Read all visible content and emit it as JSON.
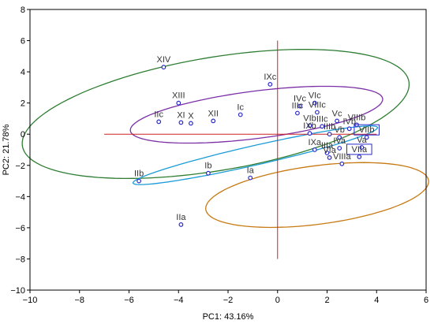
{
  "chart_data": {
    "type": "scatter",
    "xlabel": "PC1: 43.16%",
    "ylabel": "PC2: 21.78%",
    "xlim": [
      -10,
      6
    ],
    "ylim": [
      -10,
      8
    ],
    "x_ticks": [
      -10,
      -8,
      -6,
      -4,
      -2,
      0,
      2,
      4,
      6
    ],
    "y_ticks": [
      -10,
      -8,
      -6,
      -4,
      -2,
      0,
      2,
      4,
      6,
      8
    ],
    "x_tick_labels": [
      "−10",
      "−8",
      "−6",
      "−4",
      "−2",
      "0",
      "2",
      "4",
      "6"
    ],
    "y_tick_labels": [
      "−10",
      "−8",
      "−6",
      "−4",
      "−2",
      "0",
      "2",
      "4",
      "6",
      "8"
    ],
    "grid": false,
    "marker_color": "#2a2acc",
    "points": [
      {
        "label": "XIV",
        "x": -4.6,
        "y": 4.3
      },
      {
        "label": "XIII",
        "x": -4.0,
        "y": 2.0
      },
      {
        "label": "IIc",
        "x": -4.8,
        "y": 0.8
      },
      {
        "label": "XI",
        "x": -3.9,
        "y": 0.75
      },
      {
        "label": "X",
        "x": -3.5,
        "y": 0.7
      },
      {
        "label": "XII",
        "x": -2.6,
        "y": 0.85
      },
      {
        "label": "Ic",
        "x": -1.5,
        "y": 1.25
      },
      {
        "label": "IXc",
        "x": -0.3,
        "y": 3.2
      },
      {
        "label": "VIc",
        "x": 1.5,
        "y": 2.0
      },
      {
        "label": "IVc",
        "x": 0.9,
        "y": 1.8
      },
      {
        "label": "IIIc",
        "x": 0.8,
        "y": 1.35
      },
      {
        "label": "VIIIc",
        "x": 1.6,
        "y": 1.4
      },
      {
        "label": "Vc",
        "x": 2.4,
        "y": 0.85
      },
      {
        "label": "VIb",
        "x": 1.3,
        "y": 0.55
      },
      {
        "label": "IIIc",
        "x": 1.8,
        "y": 0.5
      },
      {
        "label": "IXb",
        "x": 1.3,
        "y": 0.05
      },
      {
        "label": "VIIIb",
        "x": 3.2,
        "y": 0.6
      },
      {
        "label": "IVb",
        "x": 2.9,
        "y": 0.35
      },
      {
        "label": "IIIb",
        "x": 2.1,
        "y": 0.0
      },
      {
        "label": "Vb",
        "x": 2.5,
        "y": -0.2
      },
      {
        "label": "VIIb",
        "x": 3.6,
        "y": -0.2
      },
      {
        "label": "IVa",
        "x": 2.5,
        "y": -0.9
      },
      {
        "label": "IXa",
        "x": 1.5,
        "y": -1.0
      },
      {
        "label": "IIIa",
        "x": 2.0,
        "y": -1.2
      },
      {
        "label": "Va",
        "x": 3.4,
        "y": -0.85
      },
      {
        "label": "VIIa",
        "x": 3.3,
        "y": -1.45
      },
      {
        "label": "VIa",
        "x": 2.1,
        "y": -1.5
      },
      {
        "label": "VIIIa",
        "x": 2.6,
        "y": -1.9
      },
      {
        "label": "IIb",
        "x": -5.6,
        "y": -3.0
      },
      {
        "label": "Ib",
        "x": -2.8,
        "y": -2.5
      },
      {
        "label": "Ia",
        "x": -1.1,
        "y": -2.8
      },
      {
        "label": "IIa",
        "x": -3.9,
        "y": -5.8
      }
    ],
    "boxed_labels": [
      "VIIb",
      "VIIa"
    ],
    "reference_lines": {
      "horizontal_y": 0,
      "horizontal_from": -7,
      "horizontal_to": 4,
      "vertical_x": 0,
      "vertical_from": -8,
      "vertical_to": 6,
      "color": "#cc2222"
    },
    "ellipses": [
      {
        "color": "#2e7d32",
        "cx": -2.5,
        "cy": 1.3,
        "rx": 8.1,
        "ry": 3.55,
        "angle_deg": 17
      },
      {
        "color": "#7b2fa5",
        "cx": -0.85,
        "cy": 1.25,
        "rx": 5.2,
        "ry": 1.5,
        "angle_deg": 12
      },
      {
        "color": "#1a9bd7",
        "cx": -0.9,
        "cy": -1.35,
        "rx": 5.25,
        "ry": 0.6,
        "angle_deg": 20
      },
      {
        "color": "#c77a12",
        "cx": 1.6,
        "cy": -3.9,
        "rx": 4.6,
        "ry": 1.85,
        "angle_deg": 13
      }
    ]
  }
}
